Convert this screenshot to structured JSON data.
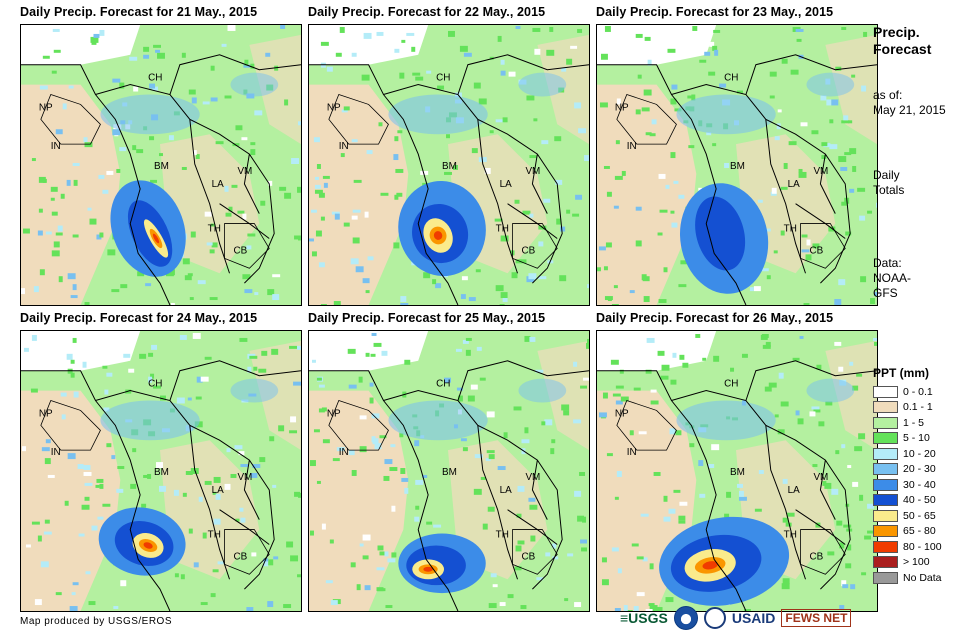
{
  "panels": [
    {
      "title": "Daily Precip. Forecast for 21 May., 2015"
    },
    {
      "title": "Daily Precip. Forecast for 22 May., 2015"
    },
    {
      "title": "Daily Precip. Forecast for 23 May., 2015"
    },
    {
      "title": "Daily Precip. Forecast for 24 May., 2015"
    },
    {
      "title": "Daily Precip. Forecast for 25 May., 2015"
    },
    {
      "title": "Daily Precip. Forecast for 26 May., 2015"
    }
  ],
  "country_labels": {
    "ch": "CH",
    "np": "NP",
    "in": "IN",
    "bm": "BM",
    "la": "LA",
    "vm": "VM",
    "th": "TH",
    "cb": "CB"
  },
  "sidebar": {
    "title_line1": "Precip.",
    "title_line2": "Forecast",
    "as_of_label": "as of:",
    "as_of_date": "May 21, 2015",
    "totals_line1": "Daily",
    "totals_line2": "Totals",
    "data_line1": "Data:",
    "data_line2": "NOAA-",
    "data_line3": "GFS"
  },
  "legend": {
    "title": "PPT (mm)",
    "items": [
      {
        "label": "0 - 0.1",
        "color": "#ffffff"
      },
      {
        "label": "0.1 - 1",
        "color": "#f0dcbc"
      },
      {
        "label": "1 - 5",
        "color": "#b4f0a0"
      },
      {
        "label": "5 - 10",
        "color": "#64e25a"
      },
      {
        "label": "10 - 20",
        "color": "#b4ecf8"
      },
      {
        "label": "20 - 30",
        "color": "#78c0f0"
      },
      {
        "label": "30 - 40",
        "color": "#3c8ce8"
      },
      {
        "label": "40 - 50",
        "color": "#1450d2"
      },
      {
        "label": "50 - 65",
        "color": "#faeb8c"
      },
      {
        "label": "65 - 80",
        "color": "#fa9600"
      },
      {
        "label": "80 - 100",
        "color": "#f03c00"
      },
      {
        "label": "> 100",
        "color": "#aa1e1e"
      },
      {
        "label": "No Data",
        "color": "#999999"
      }
    ]
  },
  "footer": {
    "credit": "Map produced by USGS/EROS",
    "logo_usgs": "≡USGS",
    "logo_usaid": "USAID",
    "logo_fews": "FEWS NET"
  }
}
